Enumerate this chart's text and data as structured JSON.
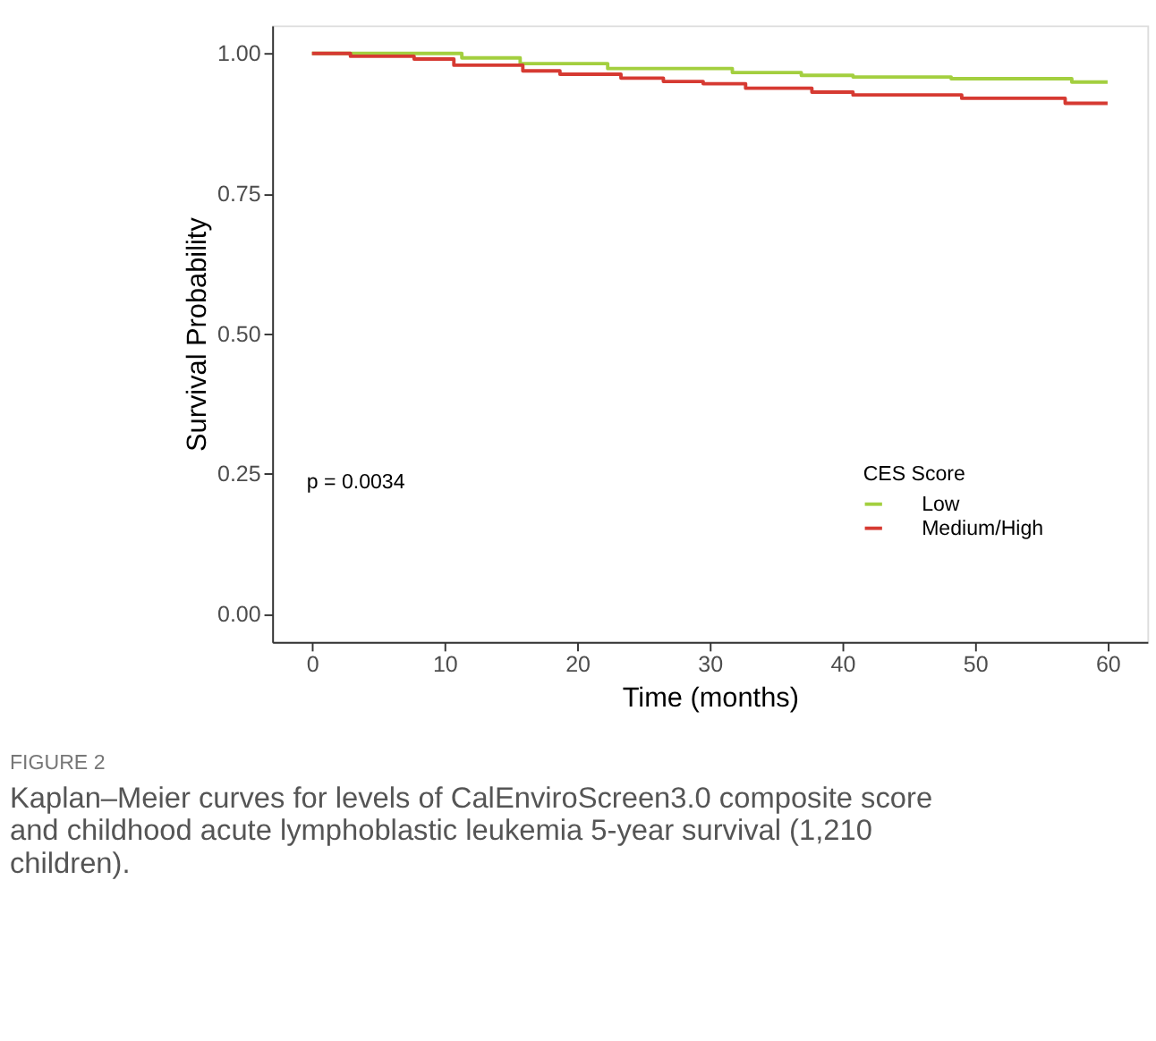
{
  "chart_data": {
    "type": "step",
    "xlabel": "Time (months)",
    "ylabel": "Survival Probability",
    "legend_title": "CES Score",
    "xlim": [
      -3,
      63
    ],
    "xticks": [
      0,
      10,
      20,
      30,
      40,
      50,
      60
    ],
    "ylim": [
      -0.05,
      1.05
    ],
    "yticks": [
      {
        "value": 0,
        "label": "0.00"
      },
      {
        "value": 0.25,
        "label": "0.25"
      },
      {
        "value": 0.5,
        "label": "0.50"
      },
      {
        "value": 0.75,
        "label": "0.75"
      },
      {
        "value": 1,
        "label": "1.00"
      }
    ],
    "grid": false,
    "legend": "bottom right",
    "series": [
      {
        "name": "Low",
        "color": "#a3cf3f",
        "x": [
          0,
          11.3,
          15.7,
          22.3,
          31.7,
          36.9,
          40.8,
          48.2,
          57.3,
          60
        ],
        "values": [
          1.0,
          0.992,
          0.982,
          0.973,
          0.966,
          0.961,
          0.958,
          0.955,
          0.949,
          0.949
        ]
      },
      {
        "name": "Medium/High",
        "color": "#d63a32",
        "x": [
          0,
          2.9,
          7.7,
          10.7,
          15.9,
          18.7,
          23.3,
          26.5,
          29.5,
          32.7,
          37.7,
          40.8,
          49,
          56.8,
          60
        ],
        "values": [
          1.0,
          0.995,
          0.99,
          0.979,
          0.969,
          0.963,
          0.956,
          0.95,
          0.946,
          0.938,
          0.931,
          0.926,
          0.92,
          0.911,
          0.911
        ]
      }
    ],
    "annotations": [
      "p = 0.0034",
      "FIGURE 2",
      "Kaplan–Meier curves for levels of CalEnviroScreen3.0 composite score and childhood acute lymphoblastic leukemia 5-year survival (1,210 children)."
    ]
  }
}
